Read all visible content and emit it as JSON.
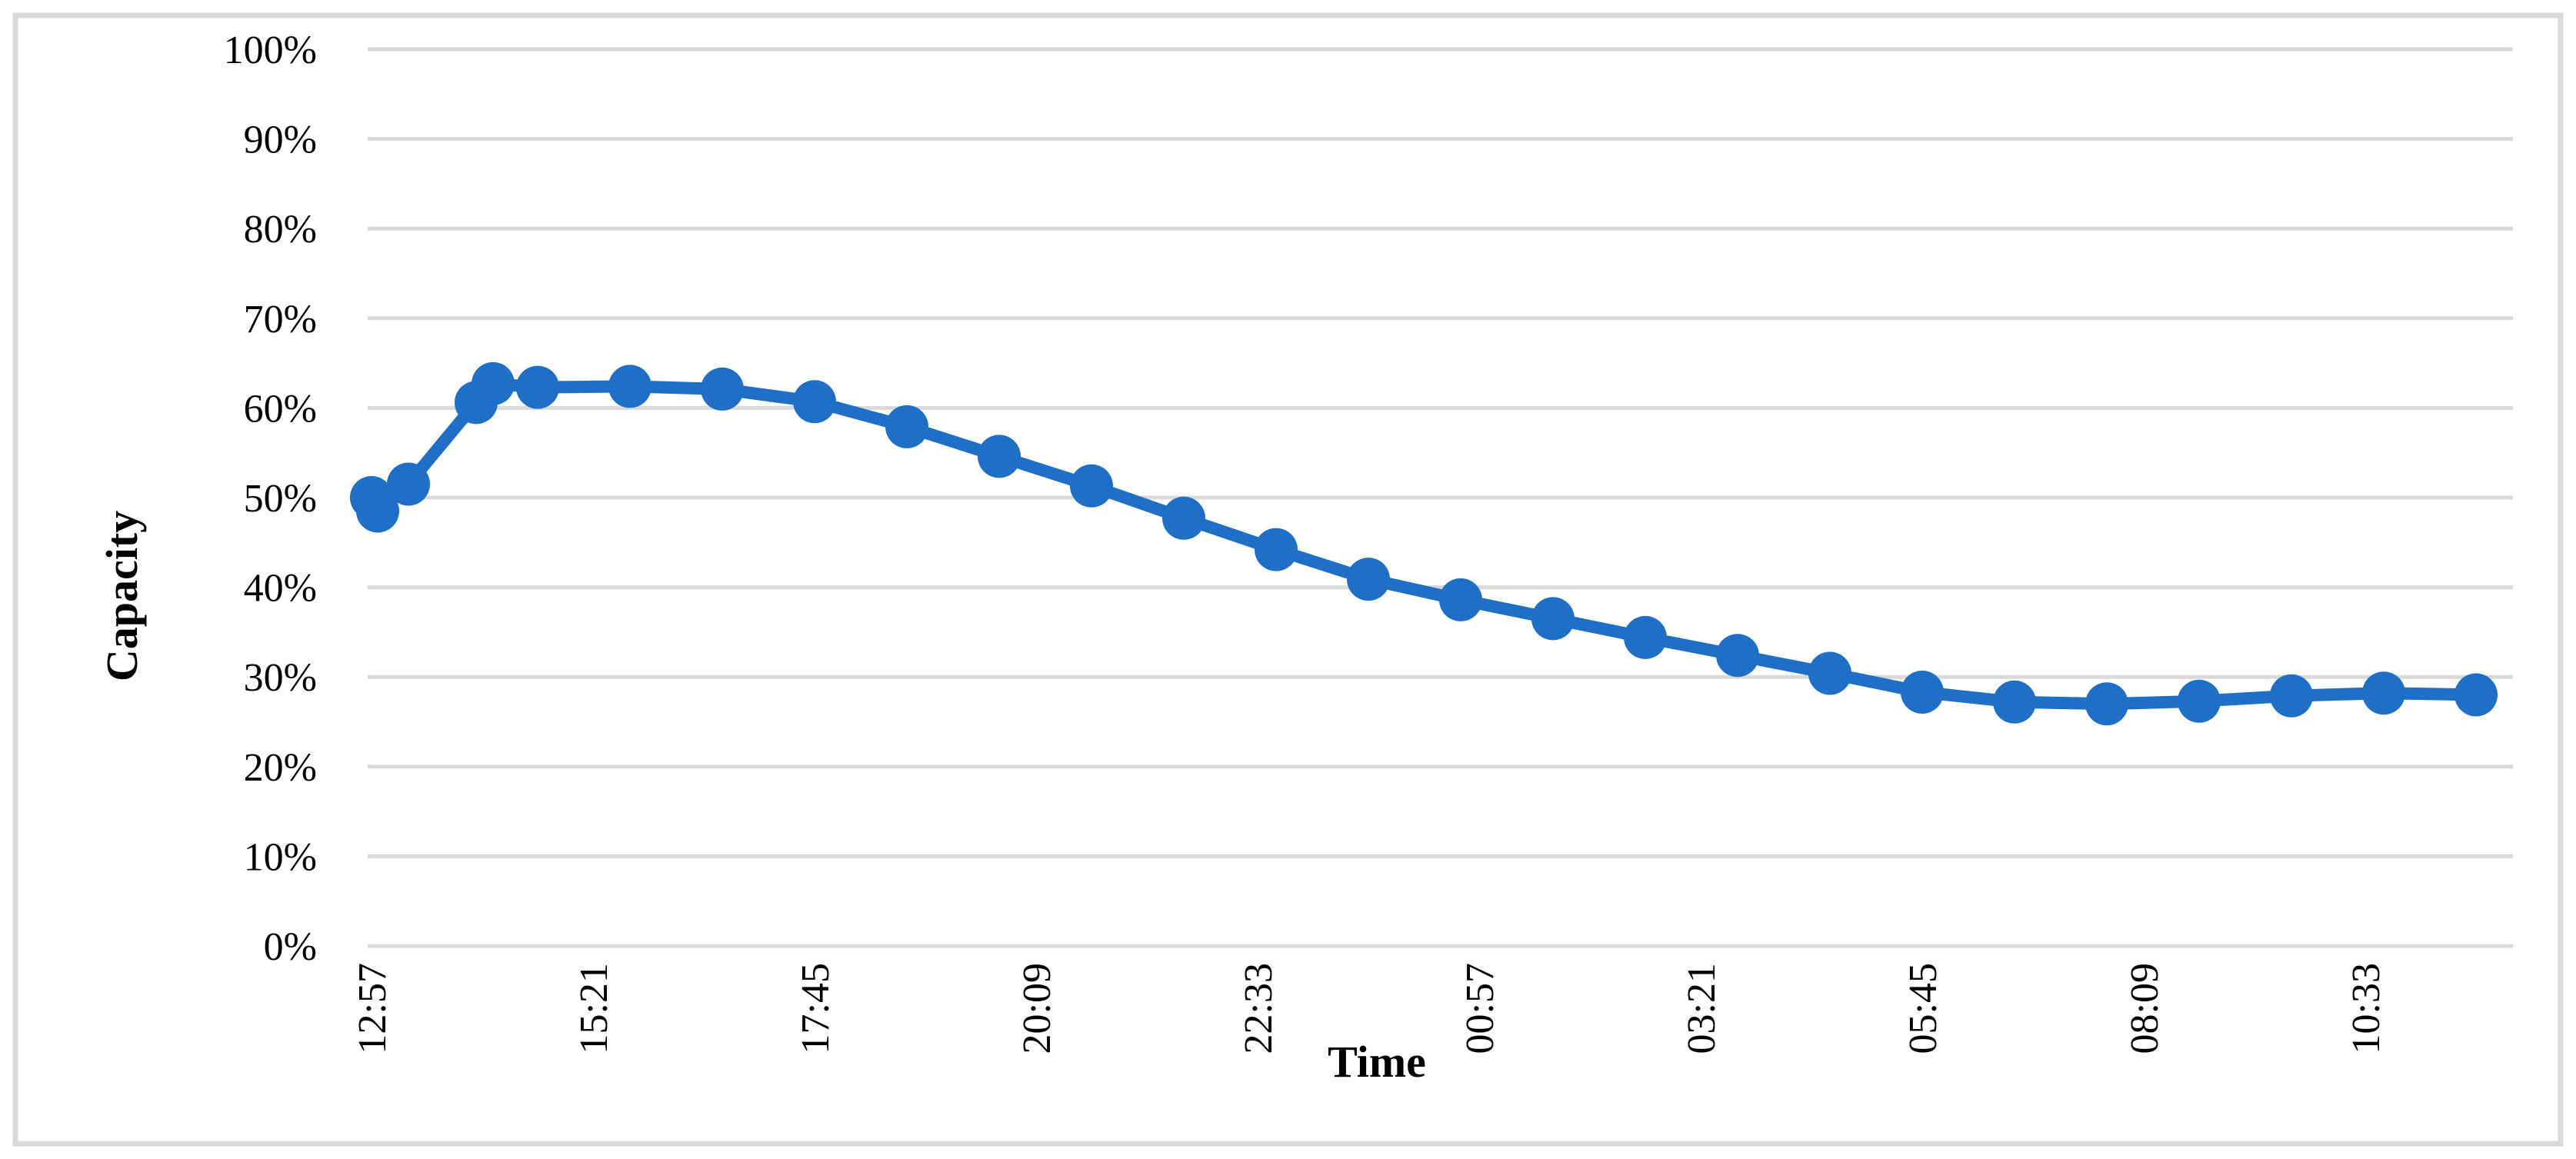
{
  "chart_data": {
    "type": "line",
    "title": "",
    "xlabel": "Time",
    "ylabel": "Capacity",
    "legend": "none",
    "grid": "horizontal",
    "ylim": [
      0,
      100
    ],
    "y_tick_step": 10,
    "y_tick_suffix": "%",
    "y_ticks": [
      "0%",
      "10%",
      "20%",
      "30%",
      "40%",
      "50%",
      "60%",
      "70%",
      "80%",
      "90%",
      "100%"
    ],
    "x_ticks": [
      {
        "label": "12:57",
        "min": 0
      },
      {
        "label": "15:21",
        "min": 144
      },
      {
        "label": "17:45",
        "min": 288
      },
      {
        "label": "20:09",
        "min": 432
      },
      {
        "label": "22:33",
        "min": 576
      },
      {
        "label": "00:57",
        "min": 720
      },
      {
        "label": "03:21",
        "min": 864
      },
      {
        "label": "05:45",
        "min": 1008
      },
      {
        "label": "08:09",
        "min": 1152
      },
      {
        "label": "10:33",
        "min": 1296
      }
    ],
    "series": [
      {
        "name": "Capacity",
        "color": "#1E6FC5",
        "marker": "circle",
        "points": [
          {
            "time": "12:57",
            "min": 0,
            "value": 50.0
          },
          {
            "time": "13:01",
            "min": 4,
            "value": 48.5
          },
          {
            "time": "13:21",
            "min": 24,
            "value": 51.5
          },
          {
            "time": "14:05",
            "min": 68,
            "value": 60.6
          },
          {
            "time": "14:16",
            "min": 79,
            "value": 62.7
          },
          {
            "time": "14:45",
            "min": 108,
            "value": 62.3
          },
          {
            "time": "15:45",
            "min": 168,
            "value": 62.4
          },
          {
            "time": "16:45",
            "min": 228,
            "value": 62.1
          },
          {
            "time": "17:45",
            "min": 288,
            "value": 60.7
          },
          {
            "time": "18:45",
            "min": 348,
            "value": 57.9
          },
          {
            "time": "19:45",
            "min": 408,
            "value": 54.6
          },
          {
            "time": "20:45",
            "min": 468,
            "value": 51.3
          },
          {
            "time": "21:45",
            "min": 528,
            "value": 47.7
          },
          {
            "time": "22:45",
            "min": 588,
            "value": 44.2
          },
          {
            "time": "23:45",
            "min": 648,
            "value": 40.9
          },
          {
            "time": "00:45",
            "min": 708,
            "value": 38.6
          },
          {
            "time": "01:45",
            "min": 768,
            "value": 36.5
          },
          {
            "time": "02:45",
            "min": 828,
            "value": 34.4
          },
          {
            "time": "03:45",
            "min": 888,
            "value": 32.4
          },
          {
            "time": "04:45",
            "min": 948,
            "value": 30.4
          },
          {
            "time": "05:45",
            "min": 1008,
            "value": 28.3
          },
          {
            "time": "06:45",
            "min": 1068,
            "value": 27.2
          },
          {
            "time": "07:45",
            "min": 1128,
            "value": 27.0
          },
          {
            "time": "08:45",
            "min": 1188,
            "value": 27.3
          },
          {
            "time": "09:45",
            "min": 1248,
            "value": 27.9
          },
          {
            "time": "10:45",
            "min": 1308,
            "value": 28.2
          },
          {
            "time": "11:45",
            "min": 1368,
            "value": 28.0
          }
        ]
      }
    ],
    "colors": {
      "line": "#1E6FC5",
      "gridline": "#D9D9D9",
      "chart_border": "#D9D9D9",
      "text": "#000000",
      "background": "#FFFFFF"
    }
  }
}
